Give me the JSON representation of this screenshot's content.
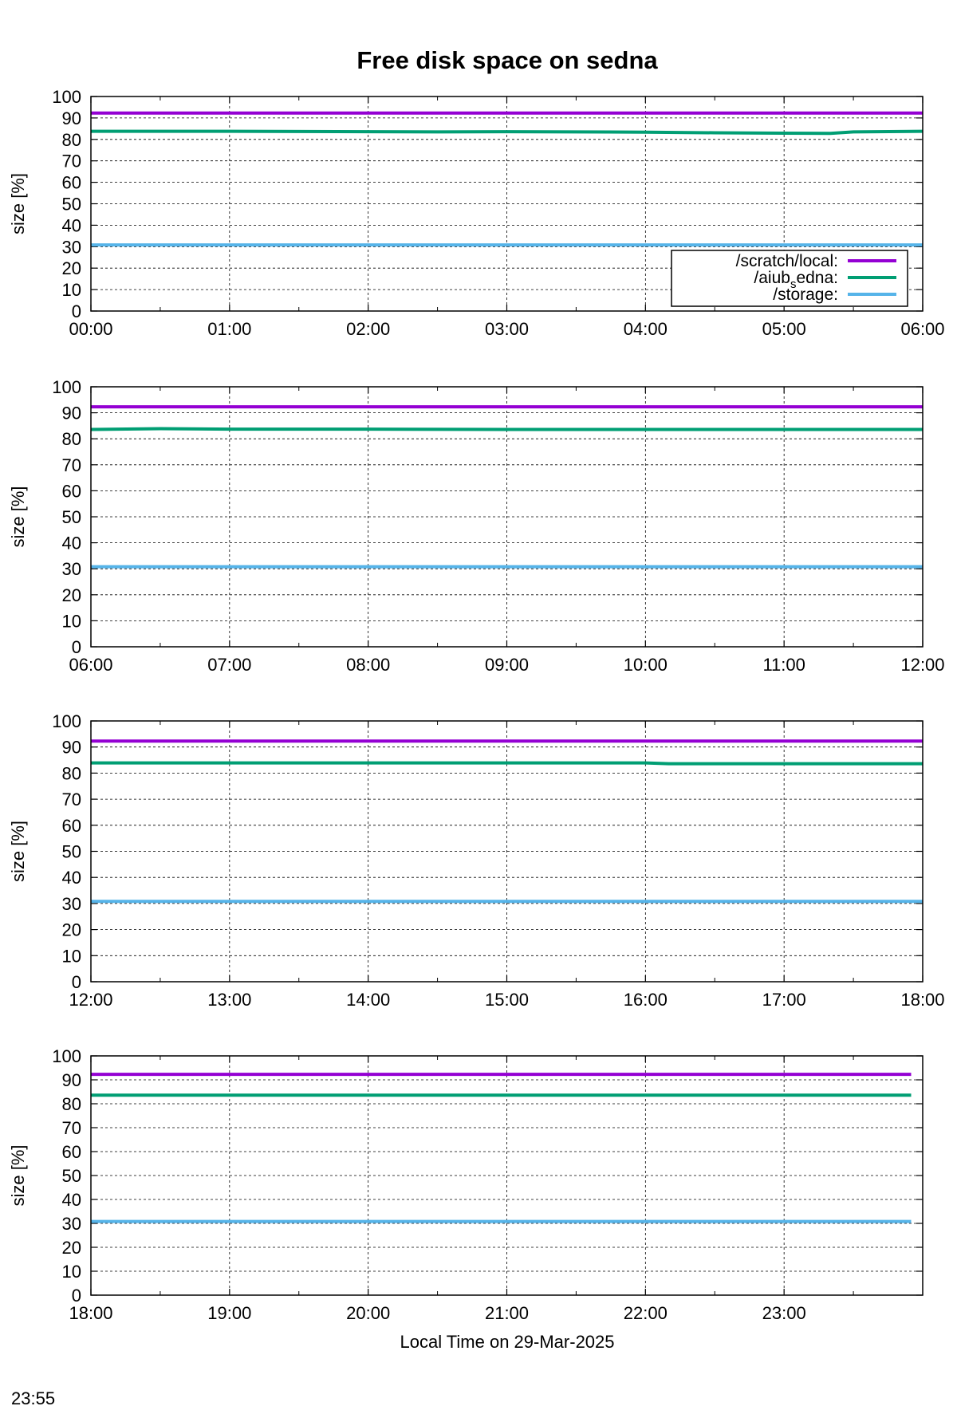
{
  "chart_data": {
    "type": "line",
    "title": "Free disk space on sedna",
    "xlabel": "Local Time on 29-Mar-2025",
    "ylabel": "size [%]",
    "ylim": [
      0,
      100
    ],
    "yticks": [
      "0",
      "10",
      "20",
      "30",
      "40",
      "50",
      "60",
      "70",
      "80",
      "90",
      "100"
    ],
    "grid": true,
    "legend_position": "bottom-right of first panel",
    "footer_time": "23:55",
    "series": [
      {
        "name": "/scratch/local:",
        "color": "#9400d3"
      },
      {
        "name": "/aiub_sedna:",
        "color": "#009e73"
      },
      {
        "name": "/storage:",
        "color": "#56b4e9"
      }
    ],
    "panels": [
      {
        "xticks": [
          "00:00",
          "01:00",
          "02:00",
          "03:00",
          "04:00",
          "05:00",
          "06:00"
        ],
        "x_range": [
          "00:00",
          "06:00"
        ],
        "x": [
          "00:00",
          "01:00",
          "02:00",
          "02:30",
          "03:00",
          "04:00",
          "04:30",
          "05:00",
          "05:20",
          "05:30",
          "06:00"
        ],
        "values": {
          "/scratch/local:": [
            92.3,
            92.3,
            92.3,
            92.3,
            92.3,
            92.3,
            92.3,
            92.3,
            92.3,
            92.3,
            92.3
          ],
          "/aiub_sedna:": [
            83.8,
            83.8,
            83.6,
            83.5,
            83.6,
            83.4,
            83.1,
            82.9,
            82.8,
            83.5,
            83.8
          ],
          "/storage:": [
            30.8,
            30.8,
            30.8,
            30.8,
            30.8,
            30.8,
            30.8,
            30.8,
            30.8,
            30.8,
            30.8
          ]
        }
      },
      {
        "xticks": [
          "06:00",
          "07:00",
          "08:00",
          "09:00",
          "10:00",
          "11:00",
          "12:00"
        ],
        "x_range": [
          "06:00",
          "12:00"
        ],
        "x": [
          "06:00",
          "06:30",
          "07:00",
          "08:00",
          "09:00",
          "10:00",
          "11:00",
          "12:00"
        ],
        "values": {
          "/scratch/local:": [
            92.3,
            92.3,
            92.3,
            92.3,
            92.3,
            92.3,
            92.3,
            92.3
          ],
          "/aiub_sedna:": [
            83.6,
            83.9,
            83.7,
            83.7,
            83.6,
            83.6,
            83.6,
            83.6
          ],
          "/storage:": [
            30.8,
            30.8,
            30.8,
            30.8,
            30.8,
            30.8,
            30.8,
            30.8
          ]
        }
      },
      {
        "xticks": [
          "12:00",
          "13:00",
          "14:00",
          "15:00",
          "16:00",
          "17:00",
          "18:00"
        ],
        "x_range": [
          "12:00",
          "18:00"
        ],
        "x": [
          "12:00",
          "13:00",
          "14:00",
          "15:00",
          "16:00",
          "16:10",
          "17:00",
          "18:00"
        ],
        "values": {
          "/scratch/local:": [
            92.3,
            92.3,
            92.3,
            92.3,
            92.3,
            92.3,
            92.3,
            92.3
          ],
          "/aiub_sedna:": [
            83.9,
            83.9,
            83.9,
            83.9,
            83.9,
            83.6,
            83.6,
            83.6
          ],
          "/storage:": [
            30.8,
            30.8,
            30.8,
            30.8,
            30.8,
            30.8,
            30.8,
            30.8
          ]
        }
      },
      {
        "xticks": [
          "18:00",
          "19:00",
          "20:00",
          "21:00",
          "22:00",
          "23:00"
        ],
        "x_range": [
          "18:00",
          "23:55"
        ],
        "x": [
          "18:00",
          "19:00",
          "20:00",
          "21:00",
          "22:00",
          "23:00",
          "23:55"
        ],
        "values": {
          "/scratch/local:": [
            92.3,
            92.3,
            92.3,
            92.3,
            92.3,
            92.3,
            92.3
          ],
          "/aiub_sedna:": [
            83.6,
            83.6,
            83.6,
            83.6,
            83.6,
            83.6,
            83.6
          ],
          "/storage:": [
            30.8,
            30.8,
            30.8,
            30.8,
            30.8,
            30.8,
            30.8
          ]
        }
      }
    ]
  }
}
